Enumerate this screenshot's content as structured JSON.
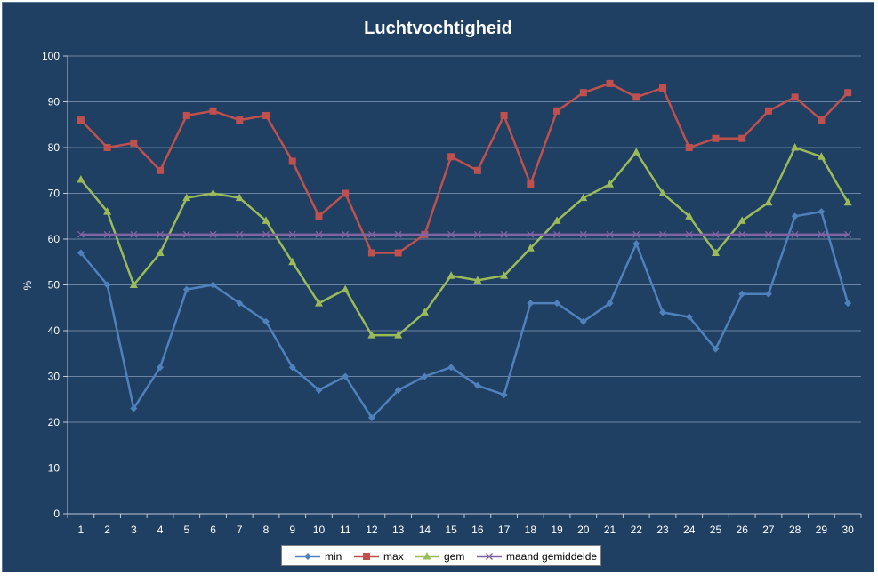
{
  "chart_data": {
    "type": "line",
    "title": "Luchtvochtigheid",
    "xlabel": "",
    "ylabel": "%",
    "ylim": [
      0,
      100
    ],
    "yticks": [
      0,
      10,
      20,
      30,
      40,
      50,
      60,
      70,
      80,
      90,
      100
    ],
    "categories": [
      "1",
      "2",
      "3",
      "4",
      "5",
      "6",
      "7",
      "8",
      "9",
      "10",
      "11",
      "12",
      "13",
      "14",
      "15",
      "16",
      "17",
      "18",
      "19",
      "20",
      "21",
      "22",
      "23",
      "24",
      "25",
      "26",
      "27",
      "28",
      "29",
      "30"
    ],
    "grid": "horizontal major gridlines",
    "legend_position": "bottom",
    "series": [
      {
        "name": "min",
        "color": "#4F81BD",
        "marker": "diamond",
        "values": [
          57,
          50,
          23,
          32,
          49,
          50,
          46,
          42,
          32,
          27,
          30,
          21,
          27,
          30,
          32,
          28,
          26,
          46,
          46,
          42,
          46,
          59,
          44,
          43,
          36,
          48,
          48,
          65,
          66,
          46
        ]
      },
      {
        "name": "max",
        "color": "#C0504D",
        "marker": "square",
        "values": [
          86,
          80,
          81,
          75,
          87,
          88,
          86,
          87,
          77,
          65,
          70,
          57,
          57,
          61,
          78,
          75,
          87,
          72,
          88,
          92,
          94,
          91,
          93,
          80,
          82,
          82,
          88,
          91,
          86,
          92
        ]
      },
      {
        "name": "gem",
        "color": "#9BBB59",
        "marker": "triangle",
        "values": [
          73,
          66,
          50,
          57,
          69,
          70,
          69,
          64,
          55,
          46,
          49,
          39,
          39,
          44,
          52,
          51,
          52,
          58,
          64,
          69,
          72,
          79,
          70,
          65,
          57,
          64,
          68,
          80,
          78,
          68
        ]
      },
      {
        "name": "maand gemiddelde",
        "color": "#8064A2",
        "marker": "x",
        "values": [
          61,
          61,
          61,
          61,
          61,
          61,
          61,
          61,
          61,
          61,
          61,
          61,
          61,
          61,
          61,
          61,
          61,
          61,
          61,
          61,
          61,
          61,
          61,
          61,
          61,
          61,
          61,
          61,
          61,
          61
        ]
      }
    ]
  }
}
